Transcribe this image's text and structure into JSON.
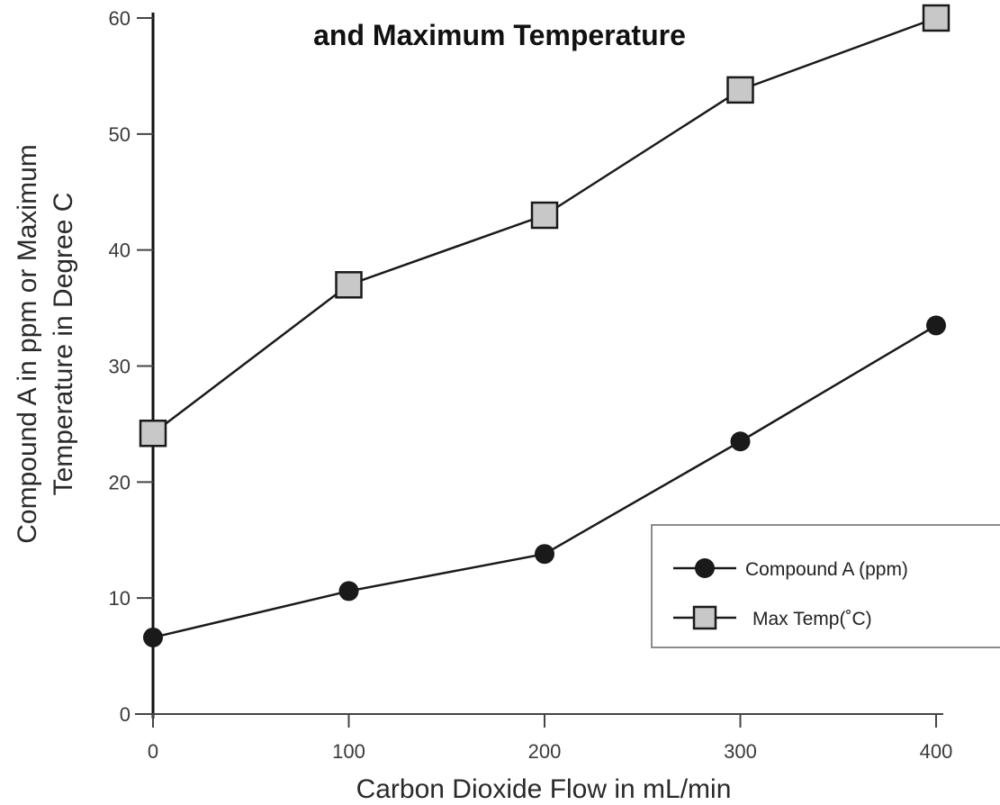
{
  "chart_data": {
    "type": "line",
    "title": "and Maximum Temperature",
    "xlabel": "Carbon Dioxide Flow in mL/min",
    "ylabel_line1": "Compound A in ppm or Maximum",
    "ylabel_line2": "Temperature in Degree C",
    "x_ticks": [
      "0",
      "100",
      "200",
      "300",
      "400"
    ],
    "y_ticks": [
      "0",
      "10",
      "20",
      "30",
      "40",
      "50",
      "60"
    ],
    "xlim": [
      0,
      400
    ],
    "ylim": [
      0,
      60
    ],
    "grid": false,
    "legend_position": "right",
    "series": [
      {
        "name": "Compound A (ppm)",
        "marker": "circle",
        "color": "#1a1a1a",
        "x": [
          0,
          100,
          200,
          300,
          400
        ],
        "values": [
          6.6,
          10.6,
          13.8,
          23.5,
          33.5
        ]
      },
      {
        "name": "Max Temp(˚C)",
        "marker": "square",
        "color": "#c8c8c8",
        "x": [
          0,
          100,
          200,
          300,
          400
        ],
        "values": [
          24.2,
          37.0,
          43.0,
          53.8,
          60.0
        ]
      }
    ]
  }
}
